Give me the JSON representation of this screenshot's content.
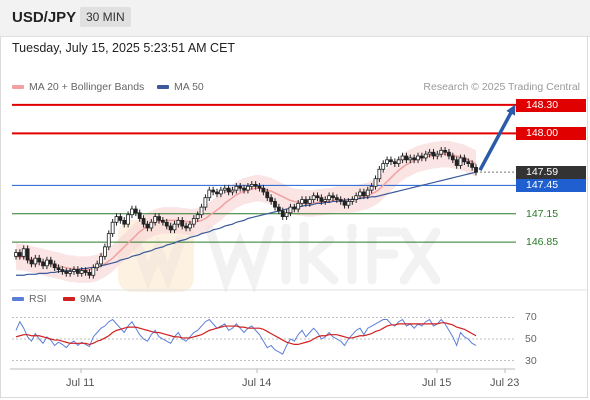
{
  "header": {
    "symbol": "USD/JPY",
    "timeframe": "30 MIN"
  },
  "timestamp": "Tuesday, July 15, 2025 5:23:51 AM CET",
  "legend": {
    "ma20_label": "MA 20 + Bollinger Bands",
    "ma50_label": "MA 50",
    "credit": "Research © 2025 Trading Central",
    "rsi_label": "RSI",
    "rsi_ma_label": "9MA"
  },
  "colors": {
    "resistance": "#e00000",
    "support": "#2a7a2a",
    "current": "#333333",
    "pivot": "#1f5fd0",
    "ma50": "#3a5a9a",
    "ma20": "#f2a0a0",
    "bands": "#f8d8d8",
    "arrow": "#2b5aa8",
    "rsi": "#5b7fd8",
    "rsi_ma": "#d02020"
  },
  "chart_data": {
    "type": "candlestick",
    "ylim": [
      146.45,
      148.5
    ],
    "x_ticks": [
      "Jul 11",
      "Jul 14",
      "Jul 15",
      "Jul 23"
    ],
    "levels": [
      {
        "value": 148.3,
        "label": "148.30",
        "kind": "resistance"
      },
      {
        "value": 148.0,
        "label": "148.00",
        "kind": "resistance"
      },
      {
        "value": 147.59,
        "label": "147.59",
        "kind": "current"
      },
      {
        "value": 147.45,
        "label": "147.45",
        "kind": "pivot"
      },
      {
        "value": 147.15,
        "label": "147.15",
        "kind": "support"
      },
      {
        "value": 146.85,
        "label": "146.85",
        "kind": "support"
      }
    ],
    "close": [
      146.74,
      146.7,
      146.78,
      146.66,
      146.62,
      146.68,
      146.64,
      146.6,
      146.66,
      146.62,
      146.58,
      146.56,
      146.54,
      146.52,
      146.54,
      146.56,
      146.52,
      146.55,
      146.53,
      146.5,
      146.58,
      146.62,
      146.7,
      146.8,
      146.94,
      147.06,
      147.12,
      147.08,
      147.04,
      147.14,
      147.2,
      147.16,
      147.1,
      147.04,
      147.0,
      147.06,
      147.12,
      147.08,
      147.06,
      147.02,
      146.98,
      147.04,
      147.08,
      147.02,
      147.0,
      147.04,
      147.1,
      147.14,
      147.22,
      147.32,
      147.4,
      147.38,
      147.36,
      147.4,
      147.42,
      147.38,
      147.4,
      147.44,
      147.42,
      147.4,
      147.44,
      147.46,
      147.44,
      147.42,
      147.38,
      147.32,
      147.28,
      147.22,
      147.18,
      147.12,
      147.16,
      147.22,
      147.2,
      147.26,
      147.3,
      147.26,
      147.3,
      147.34,
      147.32,
      147.28,
      147.3,
      147.34,
      147.32,
      147.3,
      147.28,
      147.24,
      147.28,
      147.3,
      147.34,
      147.38,
      147.34,
      147.4,
      147.44,
      147.52,
      147.62,
      147.68,
      147.72,
      147.7,
      147.68,
      147.72,
      147.76,
      147.72,
      147.74,
      147.72,
      147.76,
      147.74,
      147.78,
      147.8,
      147.76,
      147.78,
      147.82,
      147.8,
      147.76,
      147.72,
      147.66,
      147.74,
      147.7,
      147.68,
      147.64,
      147.59
    ],
    "ma20": [
      146.7,
      146.69,
      146.69,
      146.68,
      146.67,
      146.66,
      146.65,
      146.64,
      146.63,
      146.62,
      146.61,
      146.6,
      146.59,
      146.58,
      146.57,
      146.57,
      146.56,
      146.56,
      146.56,
      146.56,
      146.57,
      146.58,
      146.6,
      146.62,
      146.65,
      146.68,
      146.72,
      146.76,
      146.8,
      146.84,
      146.88,
      146.92,
      146.96,
      146.99,
      147.02,
      147.04,
      147.06,
      147.07,
      147.08,
      147.08,
      147.08,
      147.08,
      147.08,
      147.07,
      147.07,
      147.06,
      147.06,
      147.07,
      147.08,
      147.1,
      147.13,
      147.16,
      147.19,
      147.22,
      147.26,
      147.29,
      147.32,
      147.35,
      147.37,
      147.39,
      147.4,
      147.41,
      147.42,
      147.42,
      147.41,
      147.4,
      147.39,
      147.37,
      147.35,
      147.33,
      147.31,
      147.29,
      147.28,
      147.27,
      147.27,
      147.26,
      147.26,
      147.26,
      147.27,
      147.27,
      147.28,
      147.28,
      147.29,
      147.3,
      147.3,
      147.3,
      147.3,
      147.3,
      147.31,
      147.32,
      147.33,
      147.34,
      147.36,
      147.38,
      147.41,
      147.45,
      147.49,
      147.53,
      147.57,
      147.61,
      147.64,
      147.67,
      147.69,
      147.71,
      147.73,
      147.74,
      147.75,
      147.76,
      147.77,
      147.77,
      147.78,
      147.78,
      147.78,
      147.77,
      147.76,
      147.75,
      147.74,
      147.72,
      147.7,
      147.68
    ],
    "ma50": [
      146.5,
      146.5,
      146.5,
      146.51,
      146.51,
      146.51,
      146.52,
      146.52,
      146.52,
      146.53,
      146.53,
      146.54,
      146.54,
      146.55,
      146.55,
      146.56,
      146.56,
      146.57,
      146.57,
      146.58,
      146.58,
      146.59,
      146.6,
      146.61,
      146.62,
      146.63,
      146.64,
      146.66,
      146.67,
      146.68,
      146.7,
      146.71,
      146.72,
      146.74,
      146.75,
      146.76,
      146.78,
      146.79,
      146.8,
      146.82,
      146.83,
      146.84,
      146.86,
      146.87,
      146.88,
      146.9,
      146.91,
      146.92,
      146.94,
      146.95,
      146.96,
      146.98,
      146.99,
      147.0,
      147.02,
      147.03,
      147.04,
      147.06,
      147.07,
      147.08,
      147.1,
      147.11,
      147.12,
      147.13,
      147.14,
      147.15,
      147.16,
      147.17,
      147.18,
      147.19,
      147.2,
      147.21,
      147.22,
      147.22,
      147.23,
      147.24,
      147.24,
      147.25,
      147.26,
      147.26,
      147.27,
      147.27,
      147.28,
      147.28,
      147.29,
      147.29,
      147.3,
      147.3,
      147.31,
      147.31,
      147.32,
      147.32,
      147.33,
      147.33,
      147.34,
      147.35,
      147.36,
      147.37,
      147.38,
      147.39,
      147.4,
      147.41,
      147.42,
      147.43,
      147.44,
      147.45,
      147.46,
      147.47,
      147.48,
      147.49,
      147.5,
      147.51,
      147.52,
      147.53,
      147.54,
      147.55,
      147.56,
      147.57,
      147.58,
      147.59
    ],
    "forecast_arrow": {
      "from": 147.59,
      "to": 148.3
    },
    "rsi": {
      "ticks": [
        70,
        50,
        30
      ],
      "ylim": [
        25,
        75
      ],
      "rsi": [
        58,
        66,
        60,
        52,
        48,
        55,
        50,
        46,
        52,
        49,
        44,
        47,
        45,
        42,
        46,
        48,
        44,
        47,
        45,
        43,
        52,
        56,
        60,
        62,
        66,
        68,
        64,
        60,
        56,
        62,
        66,
        60,
        54,
        50,
        48,
        54,
        58,
        52,
        50,
        48,
        46,
        52,
        56,
        50,
        48,
        52,
        56,
        58,
        62,
        66,
        68,
        64,
        60,
        62,
        64,
        58,
        60,
        64,
        60,
        56,
        60,
        62,
        58,
        54,
        48,
        42,
        44,
        40,
        38,
        36,
        44,
        50,
        48,
        54,
        58,
        52,
        56,
        60,
        56,
        50,
        52,
        56,
        52,
        50,
        48,
        44,
        50,
        54,
        58,
        60,
        54,
        60,
        62,
        64,
        66,
        68,
        68,
        64,
        62,
        66,
        68,
        62,
        64,
        60,
        64,
        62,
        66,
        68,
        62,
        64,
        68,
        64,
        58,
        52,
        44,
        56,
        52,
        50,
        46,
        44
      ],
      "ma9": [
        52,
        53,
        54,
        54,
        53,
        53,
        53,
        52,
        51,
        50,
        49,
        49,
        48,
        47,
        46,
        46,
        46,
        46,
        46,
        45,
        46,
        48,
        49,
        51,
        53,
        56,
        58,
        59,
        60,
        61,
        61,
        61,
        60,
        59,
        58,
        57,
        56,
        56,
        55,
        54,
        53,
        52,
        52,
        51,
        51,
        51,
        52,
        53,
        54,
        56,
        58,
        59,
        60,
        61,
        62,
        62,
        62,
        62,
        61,
        61,
        60,
        60,
        60,
        60,
        59,
        57,
        55,
        53,
        51,
        49,
        47,
        46,
        45,
        45,
        46,
        47,
        48,
        50,
        52,
        53,
        53,
        54,
        54,
        54,
        53,
        52,
        51,
        51,
        52,
        53,
        53,
        54,
        55,
        57,
        58,
        60,
        62,
        63,
        63,
        64,
        64,
        64,
        64,
        64,
        64,
        64,
        64,
        64,
        64,
        64,
        65,
        65,
        64,
        63,
        61,
        60,
        59,
        57,
        55,
        53
      ]
    }
  }
}
